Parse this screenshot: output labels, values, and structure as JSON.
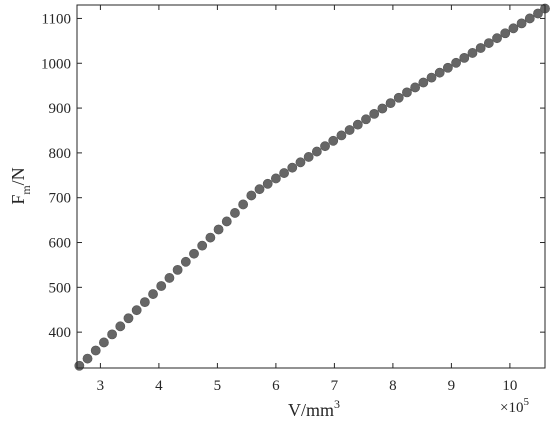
{
  "chart_data": {
    "type": "scatter",
    "xlabel": {
      "main": "V/mm",
      "sup": "3"
    },
    "ylabel": {
      "main": "F",
      "sub": "m",
      "suffix": "/N"
    },
    "x_multiplier": {
      "main": "×10",
      "sup": "5"
    },
    "xlim": [
      2.6,
      10.6
    ],
    "ylim": [
      320,
      1130
    ],
    "xticks": [
      3,
      4,
      5,
      6,
      7,
      8,
      9,
      10
    ],
    "yticks": [
      400,
      500,
      600,
      700,
      800,
      900,
      1000,
      1100
    ],
    "grid": false,
    "legend": "none",
    "marker_color": "#666666",
    "series": [
      {
        "points": [
          [
            2.64,
            325
          ],
          [
            2.78,
            341
          ],
          [
            2.92,
            359
          ],
          [
            3.06,
            377
          ],
          [
            3.2,
            395
          ],
          [
            3.34,
            413
          ],
          [
            3.48,
            431
          ],
          [
            3.62,
            449
          ],
          [
            3.76,
            467
          ],
          [
            3.9,
            485
          ],
          [
            4.04,
            503
          ],
          [
            4.18,
            521
          ],
          [
            4.32,
            539
          ],
          [
            4.46,
            557
          ],
          [
            4.6,
            575
          ],
          [
            4.74,
            593
          ],
          [
            4.88,
            611
          ],
          [
            5.02,
            629
          ],
          [
            5.16,
            647
          ],
          [
            5.3,
            666
          ],
          [
            5.44,
            685
          ],
          [
            5.58,
            705
          ],
          [
            5.72,
            719
          ],
          [
            5.86,
            731
          ],
          [
            6.0,
            743
          ],
          [
            6.14,
            755
          ],
          [
            6.28,
            767
          ],
          [
            6.42,
            779
          ],
          [
            6.56,
            791
          ],
          [
            6.7,
            803
          ],
          [
            6.84,
            815
          ],
          [
            6.98,
            827
          ],
          [
            7.12,
            839
          ],
          [
            7.26,
            851
          ],
          [
            7.4,
            863
          ],
          [
            7.54,
            875
          ],
          [
            7.68,
            887
          ],
          [
            7.82,
            899
          ],
          [
            7.96,
            911
          ],
          [
            8.1,
            923
          ],
          [
            8.24,
            935
          ],
          [
            8.38,
            946
          ],
          [
            8.52,
            957
          ],
          [
            8.66,
            968
          ],
          [
            8.8,
            979
          ],
          [
            8.94,
            990
          ],
          [
            9.08,
            1001
          ],
          [
            9.22,
            1012
          ],
          [
            9.36,
            1023
          ],
          [
            9.5,
            1034
          ],
          [
            9.64,
            1045
          ],
          [
            9.78,
            1056
          ],
          [
            9.92,
            1067
          ],
          [
            10.06,
            1078
          ],
          [
            10.2,
            1089
          ],
          [
            10.34,
            1100
          ],
          [
            10.48,
            1111
          ],
          [
            10.6,
            1122
          ]
        ]
      }
    ]
  }
}
